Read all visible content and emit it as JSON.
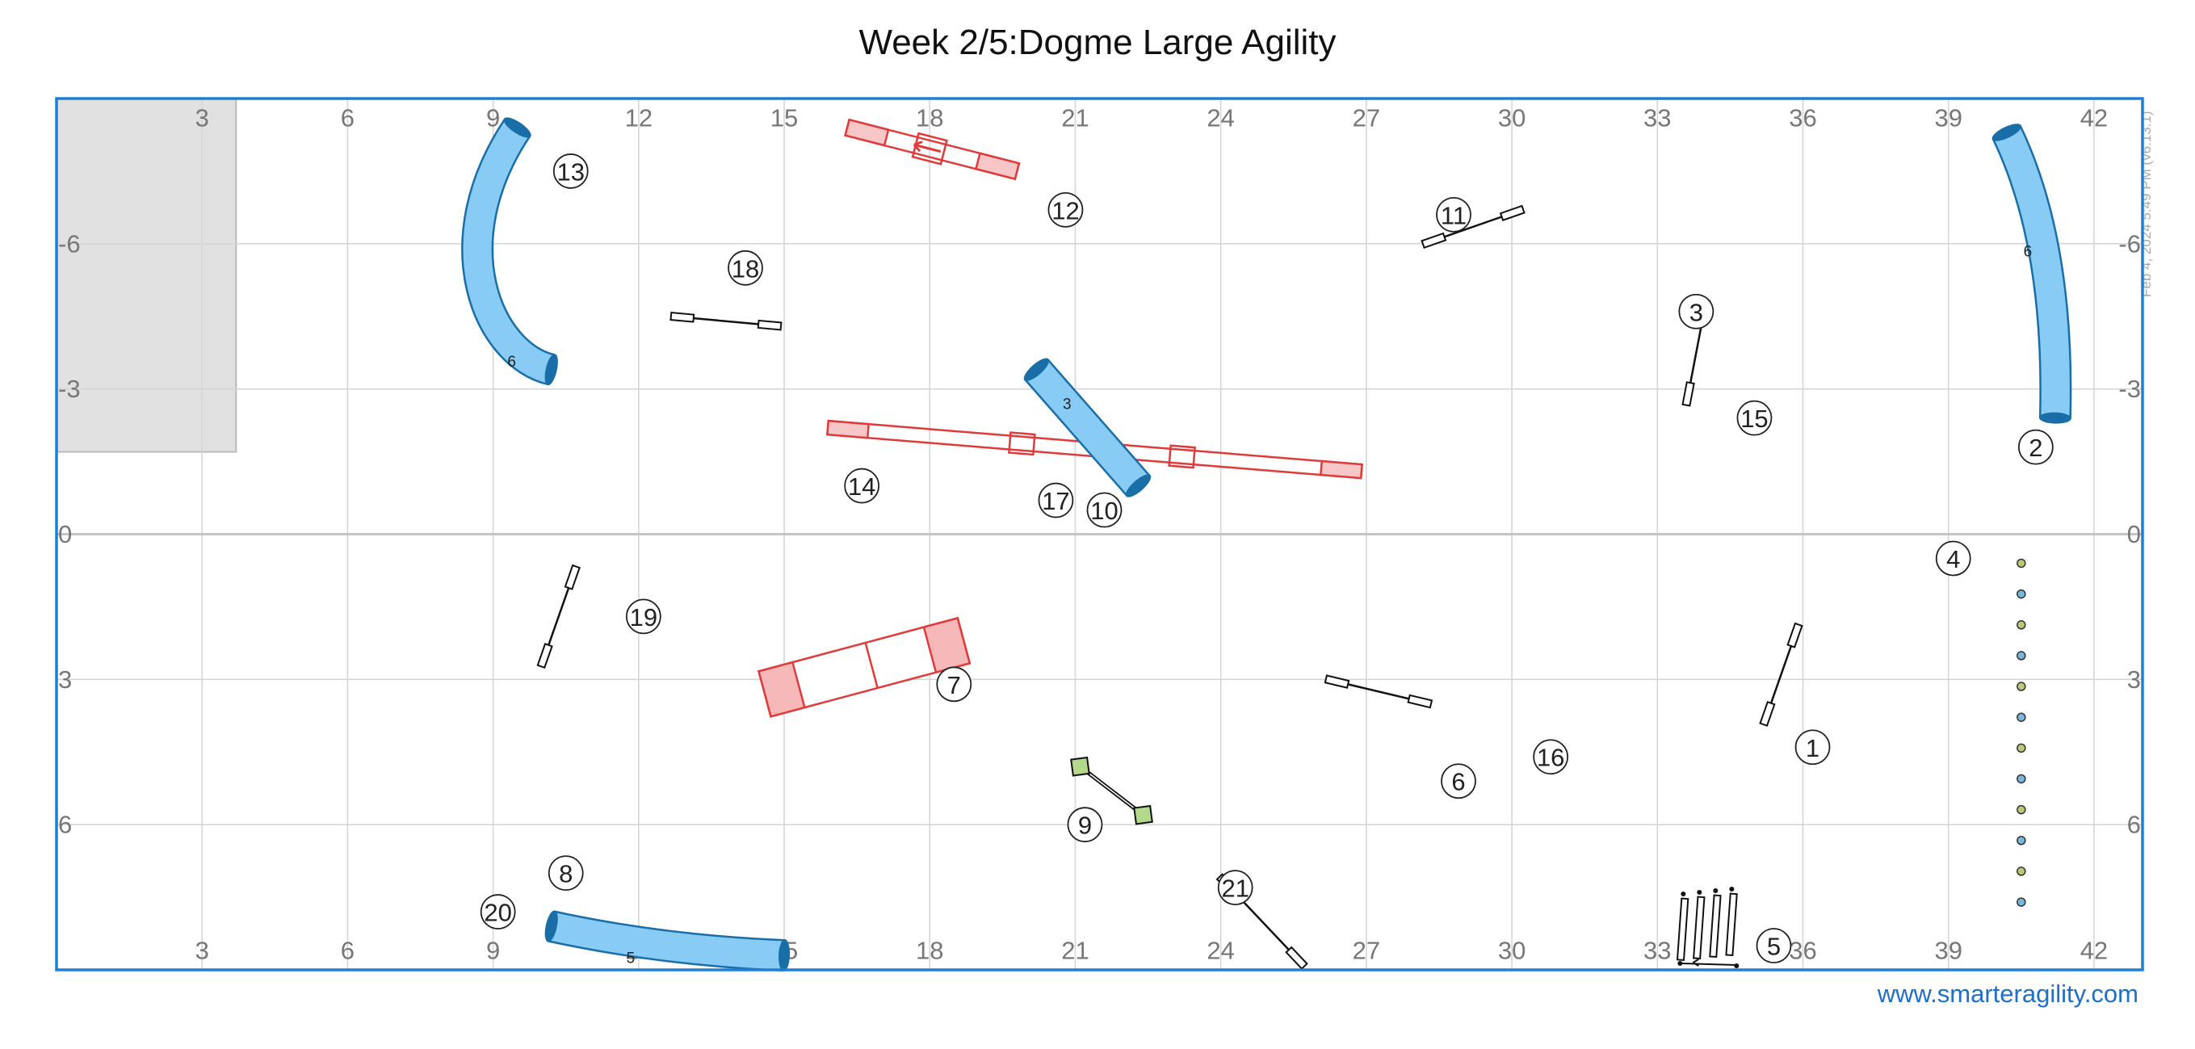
{
  "header": {
    "title": "Week 2/5:Dogme Large Agility"
  },
  "footer": {
    "website": "www.smarteragility.com"
  },
  "stamp": {
    "text": "Feb 4, 2024 5:49 PM  (v6.13.1)"
  },
  "colors": {
    "border": "#1f7fd4",
    "tunnel": "#88ccf6",
    "tunnel_stroke": "#1a6ea8",
    "contact": "#e03a3a",
    "grid": "#d6d6d6",
    "link": "#1f6fc9"
  },
  "chart_data": {
    "type": "course-map",
    "x_ticks": [
      3,
      6,
      9,
      12,
      15,
      18,
      21,
      24,
      27,
      30,
      33,
      36,
      39,
      42
    ],
    "y_ticks": [
      -6,
      -3,
      0,
      3,
      6
    ],
    "xlim": [
      0,
      43
    ],
    "ylim": [
      -9,
      9
    ],
    "grid": true,
    "restricted_area": {
      "x": [
        0,
        3.7
      ],
      "y": [
        -9,
        -1.7
      ]
    },
    "numbers": [
      {
        "n": "1",
        "x": 36.2,
        "y": 4.4
      },
      {
        "n": "2",
        "x": 40.8,
        "y": -1.8
      },
      {
        "n": "3",
        "x": 33.8,
        "y": -4.6
      },
      {
        "n": "4",
        "x": 39.1,
        "y": 0.5
      },
      {
        "n": "5",
        "x": 35.4,
        "y": 8.5
      },
      {
        "n": "6",
        "x": 28.9,
        "y": 5.1
      },
      {
        "n": "7",
        "x": 18.5,
        "y": 3.1
      },
      {
        "n": "8",
        "x": 10.5,
        "y": 7.0
      },
      {
        "n": "9",
        "x": 21.2,
        "y": 6.0
      },
      {
        "n": "10",
        "x": 21.6,
        "y": -0.5
      },
      {
        "n": "11",
        "x": 28.8,
        "y": -6.6
      },
      {
        "n": "12",
        "x": 20.8,
        "y": -6.7
      },
      {
        "n": "13",
        "x": 10.6,
        "y": -7.5
      },
      {
        "n": "14",
        "x": 16.6,
        "y": -1.0
      },
      {
        "n": "15",
        "x": 35.0,
        "y": -2.4
      },
      {
        "n": "16",
        "x": 30.8,
        "y": 4.6
      },
      {
        "n": "17",
        "x": 20.6,
        "y": -0.7
      },
      {
        "n": "18",
        "x": 14.2,
        "y": -5.5
      },
      {
        "n": "19",
        "x": 12.1,
        "y": 1.7
      },
      {
        "n": "20",
        "x": 9.1,
        "y": 7.8
      },
      {
        "n": "21",
        "x": 24.3,
        "y": 7.3
      }
    ],
    "jumps": [
      {
        "x1": 35.9,
        "y1": 1.9,
        "x2": 35.2,
        "y2": 3.9
      },
      {
        "x1": 34.0,
        "y1": -4.8,
        "x2": 33.6,
        "y2": -2.7
      },
      {
        "x1": 28.2,
        "y1": -6.0,
        "x2": 30.2,
        "y2": -6.7
      },
      {
        "x1": 26.2,
        "y1": 3.0,
        "x2": 28.3,
        "y2": 3.5
      },
      {
        "x1": 12.7,
        "y1": -4.5,
        "x2": 14.9,
        "y2": -4.3
      },
      {
        "x1": 10.7,
        "y1": 0.7,
        "x2": 10.0,
        "y2": 2.7
      },
      {
        "x1": 24.0,
        "y1": 7.1,
        "x2": 25.7,
        "y2": 8.9
      }
    ],
    "tire": {
      "x1": 21.1,
      "y1": 4.8,
      "x2": 22.4,
      "y2": 5.8
    },
    "dogwalk": {
      "x1": 15.9,
      "y1": -2.2,
      "x2": 26.9,
      "y2": -1.3,
      "supports": [
        19.9,
        23.2
      ]
    },
    "aframe": {
      "x1": 14.6,
      "y1": 3.3,
      "x2": 18.7,
      "y2": 2.2,
      "apex": 16.8
    },
    "seesaw": {
      "x1": 16.3,
      "y1": -8.4,
      "x2": 19.8,
      "y2": -7.5,
      "pivot": 18.0
    },
    "weaves": {
      "x": 40.5,
      "y_start": 0.6,
      "y_end": 7.6,
      "count": 12
    },
    "tunnels": [
      {
        "label": "6",
        "path": [
          [
            9.5,
            -8.4
          ],
          [
            7.9,
            -6.0
          ],
          [
            8.9,
            -3.7
          ],
          [
            10.2,
            -3.4
          ]
        ]
      },
      {
        "label": "3",
        "path": [
          [
            20.2,
            -3.4
          ],
          [
            22.3,
            -1.0
          ]
        ]
      },
      {
        "label": "6",
        "path": [
          [
            40.2,
            -8.3
          ],
          [
            41.3,
            -6.0
          ],
          [
            41.2,
            -2.4
          ]
        ]
      },
      {
        "label": "5",
        "path": [
          [
            10.2,
            8.1
          ],
          [
            12.5,
            8.6
          ],
          [
            15.0,
            8.7
          ]
        ]
      }
    ],
    "double": {
      "x": 33.6,
      "y": 8.0
    }
  }
}
